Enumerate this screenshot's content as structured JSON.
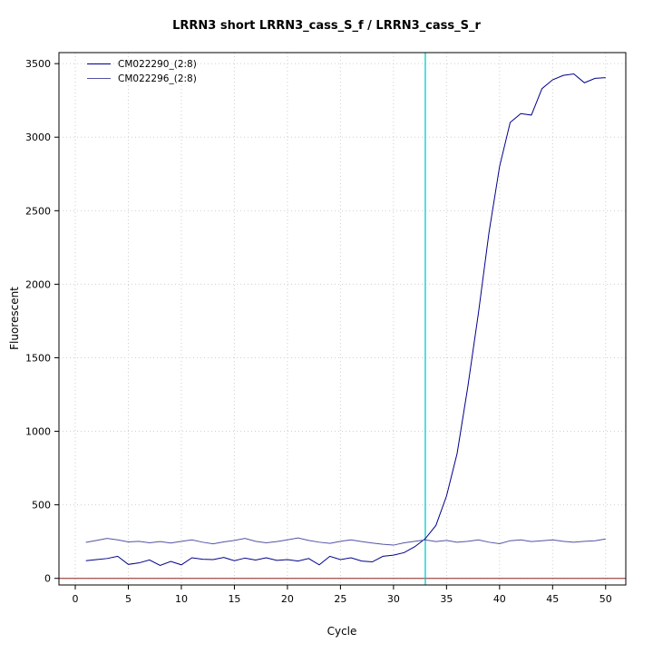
{
  "chart_data": {
    "type": "line",
    "title": "LRRN3 short LRRN3_cass_S_f / LRRN3_cass_S_r",
    "xlabel": "Cycle",
    "ylabel": "Fluorescent",
    "x": [
      1,
      2,
      3,
      4,
      5,
      6,
      7,
      8,
      9,
      10,
      11,
      12,
      13,
      14,
      15,
      16,
      17,
      18,
      19,
      20,
      21,
      22,
      23,
      24,
      25,
      26,
      27,
      28,
      29,
      30,
      31,
      32,
      33,
      34,
      35,
      36,
      37,
      38,
      39,
      40,
      41,
      42,
      43,
      44,
      45,
      46,
      47,
      48,
      49,
      50
    ],
    "series": [
      {
        "name": "CM022290_(2:8)",
        "color": "#00008B",
        "values": [
          120,
          128,
          135,
          150,
          95,
          105,
          125,
          88,
          115,
          92,
          140,
          130,
          128,
          142,
          120,
          138,
          125,
          140,
          122,
          128,
          118,
          135,
          92,
          150,
          128,
          140,
          118,
          112,
          150,
          158,
          175,
          215,
          270,
          360,
          560,
          850,
          1300,
          1800,
          2350,
          2800,
          3100,
          3160,
          3150,
          3330,
          3390,
          3420,
          3430,
          3370,
          3400,
          3405
        ]
      },
      {
        "name": "CM022296_(2:8)",
        "color": "#5353A4",
        "values": [
          245,
          258,
          272,
          262,
          248,
          252,
          242,
          250,
          240,
          252,
          262,
          246,
          235,
          248,
          258,
          272,
          252,
          242,
          250,
          262,
          275,
          258,
          246,
          238,
          252,
          262,
          250,
          240,
          232,
          226,
          242,
          252,
          262,
          250,
          258,
          246,
          252,
          262,
          246,
          236,
          256,
          262,
          250,
          256,
          262,
          252,
          246,
          252,
          256,
          268
        ]
      }
    ],
    "xticks": [
      0,
      5,
      10,
      15,
      20,
      25,
      30,
      35,
      40,
      45,
      50
    ],
    "yticks": [
      0,
      500,
      1000,
      1500,
      2000,
      2500,
      3000,
      3500
    ],
    "xlim": [
      -1.54,
      51.9
    ],
    "ylim": [
      -45,
      3575
    ],
    "grid": true,
    "legend_position": "top-left",
    "threshold_cycle_line": {
      "x": 33,
      "color": "#00CDCD"
    },
    "baseline_line": {
      "y": 0,
      "color": "#8B2323"
    }
  }
}
